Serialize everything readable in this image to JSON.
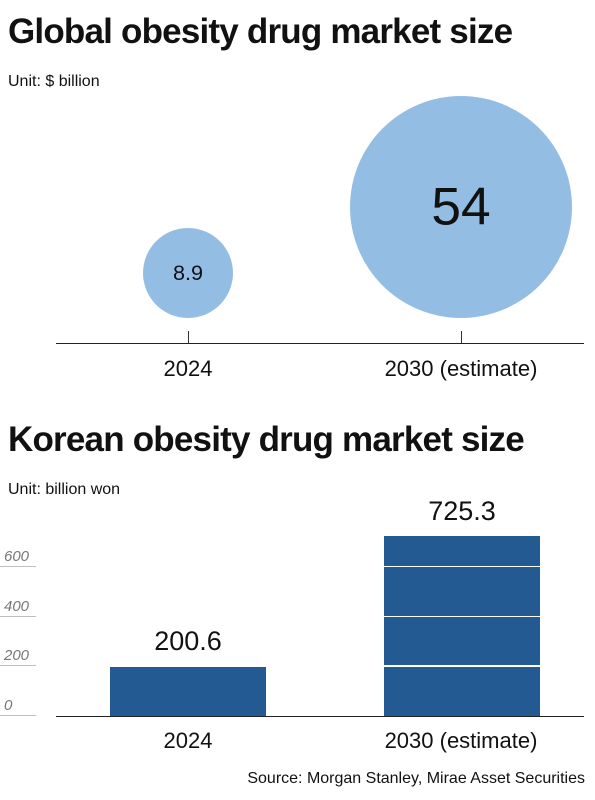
{
  "chart_data": [
    {
      "type": "bubble",
      "title": "Global obesity drug market size",
      "unit": "Unit: $ billion",
      "categories": [
        "2024",
        "2030 (estimate)"
      ],
      "values": [
        8.9,
        54
      ],
      "value_labels": [
        "8.9",
        "54"
      ],
      "color": "#94bde4"
    },
    {
      "type": "bar",
      "title": "Korean obesity drug market size",
      "unit": "Unit: billion won",
      "categories": [
        "2024",
        "2030 (estimate)"
      ],
      "values": [
        200.6,
        725.3
      ],
      "value_labels": [
        "200.6",
        "725.3"
      ],
      "yticks": [
        "0",
        "200",
        "400",
        "600"
      ],
      "ylim": [
        0,
        800
      ],
      "color": "#245a92"
    }
  ],
  "source": "Source: Morgan Stanley, Mirae Asset Securities"
}
